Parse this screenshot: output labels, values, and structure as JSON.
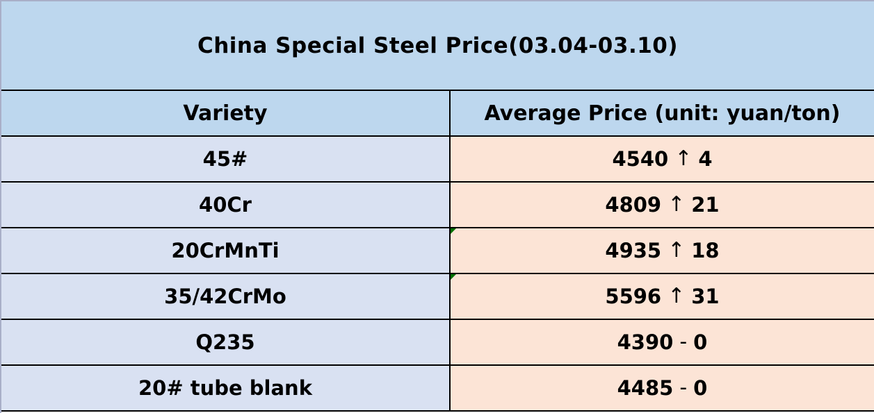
{
  "title": "China Special Steel Price(03.04-03.10)",
  "table": {
    "headers": {
      "variety": "Variety",
      "price": "Average Price (unit: yuan/ton)"
    },
    "rows": [
      {
        "variety": "45#",
        "price": "4540",
        "direction": "↑",
        "change": "4",
        "note_marker": false
      },
      {
        "variety": "40Cr",
        "price": "4809",
        "direction": "↑",
        "change": "21",
        "note_marker": false
      },
      {
        "variety": "20CrMnTi",
        "price": "4935",
        "direction": "↑",
        "change": "18",
        "note_marker": true
      },
      {
        "variety": "35/42CrMo",
        "price": "5596",
        "direction": "↑",
        "change": "31",
        "note_marker": true
      },
      {
        "variety": "Q235",
        "price": "4390",
        "direction": "-",
        "change": "0",
        "note_marker": false
      },
      {
        "variety": "20# tube blank",
        "price": "4485",
        "direction": "-",
        "change": "0",
        "note_marker": false
      }
    ]
  },
  "colors": {
    "title_header_bg": "#bdd7ee",
    "variety_cell_bg": "#d9e1f2",
    "price_cell_bg": "#fce4d6",
    "grid_border": "#000000",
    "outer_edge": "#a9afc8",
    "note_marker_green": "#007000",
    "text": "#000000"
  }
}
